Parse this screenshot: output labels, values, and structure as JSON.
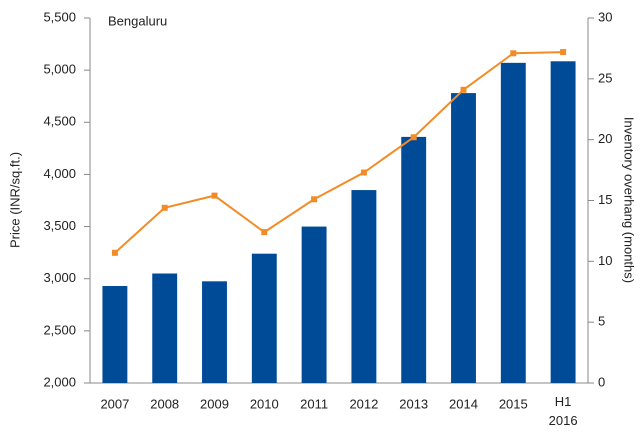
{
  "chart_data": {
    "type": "bar_line",
    "annotation": "Bengaluru",
    "y_label": "Price (INR/sq.ft.)",
    "y2_label": "Inventory overhang (months)",
    "categories": [
      "2007",
      "2008",
      "2009",
      "2010",
      "2011",
      "2012",
      "2013",
      "2014",
      "2015",
      "H1 2016"
    ],
    "series": [
      {
        "name": "Price",
        "type": "bar",
        "color": "#004b98",
        "values": [
          2930,
          3050,
          2975,
          3240,
          3500,
          3850,
          4360,
          4780,
          5070,
          5085
        ]
      },
      {
        "name": "Inventory overhang",
        "type": "line",
        "axis": "y2",
        "color": "#f28c28",
        "values": [
          10.7,
          14.4,
          15.4,
          12.4,
          15.1,
          17.3,
          20.2,
          24.1,
          27.1,
          27.2
        ]
      }
    ],
    "ylim": [
      2000,
      5500
    ],
    "yticks": [
      {
        "value": 2000,
        "label": "2,000"
      },
      {
        "value": 2500,
        "label": "2,500"
      },
      {
        "value": 3000,
        "label": "3,000"
      },
      {
        "value": 3500,
        "label": "3,500"
      },
      {
        "value": 4000,
        "label": "4,000"
      },
      {
        "value": 4500,
        "label": "4,500"
      },
      {
        "value": 5000,
        "label": "5,000"
      },
      {
        "value": 5500,
        "label": "5,500"
      }
    ],
    "y2lim": [
      0,
      30
    ],
    "y2ticks": [
      0,
      5,
      10,
      15,
      20,
      25,
      30
    ],
    "grid": false
  }
}
